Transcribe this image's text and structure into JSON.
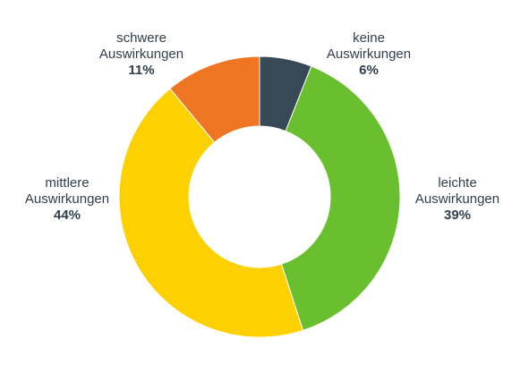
{
  "chart_data": {
    "type": "pie",
    "title": "",
    "slices": [
      {
        "label_lines": [
          "keine",
          "Auswirkungen"
        ],
        "value": 6,
        "value_label": "6%",
        "color": "#374856"
      },
      {
        "label_lines": [
          "leichte",
          "Auswirkungen"
        ],
        "value": 39,
        "value_label": "39%",
        "color": "#6abf2e"
      },
      {
        "label_lines": [
          "mittlere",
          "Auswirkungen"
        ],
        "value": 44,
        "value_label": "44%",
        "color": "#fdd000"
      },
      {
        "label_lines": [
          "schwere",
          "Auswirkungen"
        ],
        "value": 11,
        "value_label": "11%",
        "color": "#ee7623"
      }
    ],
    "donut": true,
    "start": "top",
    "direction": "clockwise",
    "legend": "none"
  },
  "colors": {
    "label_text": "#2f3e4e",
    "background": "#ffffff"
  }
}
